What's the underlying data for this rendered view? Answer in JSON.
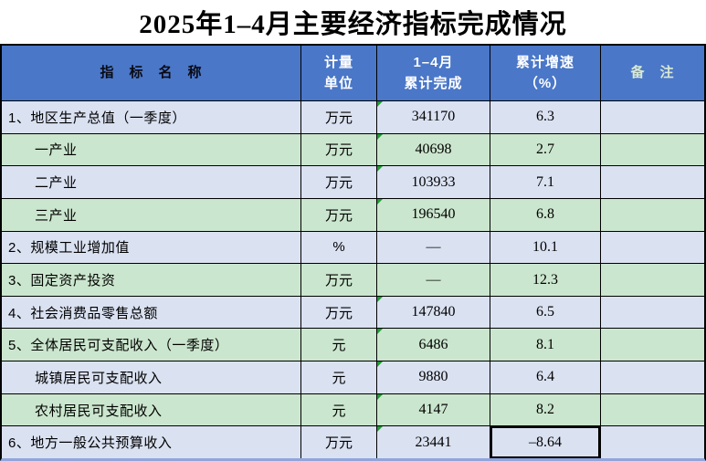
{
  "title": "2025年1–4月主要经济指标完成情况",
  "table": {
    "headers": [
      {
        "label": "指　标　名　称"
      },
      {
        "label": "计量\n单位"
      },
      {
        "label": "1–4月\n累计完成"
      },
      {
        "label": "累计增速\n（%）"
      },
      {
        "label": "备　注"
      }
    ],
    "rows": [
      {
        "name": "1、地区生产总值（一季度）",
        "unit": "万元",
        "value": "341170",
        "growth": "6.3",
        "remark": "",
        "indent": false,
        "flag": true,
        "growth_boxed": false
      },
      {
        "name": "一产业",
        "unit": "万元",
        "value": "40698",
        "growth": "2.7",
        "remark": "",
        "indent": true,
        "flag": true,
        "growth_boxed": false
      },
      {
        "name": "二产业",
        "unit": "万元",
        "value": "103933",
        "growth": "7.1",
        "remark": "",
        "indent": true,
        "flag": true,
        "growth_boxed": false
      },
      {
        "name": "三产业",
        "unit": "万元",
        "value": "196540",
        "growth": "6.8",
        "remark": "",
        "indent": true,
        "flag": true,
        "growth_boxed": false
      },
      {
        "name": "2、规模工业增加值",
        "unit": "%",
        "value": "—",
        "growth": "10.1",
        "remark": "",
        "indent": false,
        "flag": false,
        "growth_boxed": false
      },
      {
        "name": "3、固定资产投资",
        "unit": "万元",
        "value": "—",
        "growth": "12.3",
        "remark": "",
        "indent": false,
        "flag": false,
        "growth_boxed": false
      },
      {
        "name": "4、社会消费品零售总额",
        "unit": "万元",
        "value": "147840",
        "growth": "6.5",
        "remark": "",
        "indent": false,
        "flag": true,
        "growth_boxed": false
      },
      {
        "name": "5、全体居民可支配收入（一季度）",
        "unit": "元",
        "value": "6486",
        "growth": "8.1",
        "remark": "",
        "indent": false,
        "flag": true,
        "growth_boxed": false
      },
      {
        "name": "城镇居民可支配收入",
        "unit": "元",
        "value": "9880",
        "growth": "6.4",
        "remark": "",
        "indent": true,
        "flag": true,
        "growth_boxed": false
      },
      {
        "name": "农村居民可支配收入",
        "unit": "元",
        "value": "4147",
        "growth": "8.2",
        "remark": "",
        "indent": true,
        "flag": true,
        "growth_boxed": false
      },
      {
        "name": "6、地方一般公共预算收入",
        "unit": "万元",
        "value": "23441",
        "growth": "–8.64",
        "remark": "",
        "indent": false,
        "flag": true,
        "growth_boxed": true
      }
    ],
    "colors": {
      "header_bg": "#4A77C8",
      "header_text": "#FFFFFF",
      "header_name_text": "#0A0A14",
      "remark_header_text": "#D9E8D2",
      "row_blue": "#DAE1F1",
      "row_green": "#CBE6CE",
      "grid_line": "#000000",
      "flag_triangle": "#1E9E32",
      "bottom_edge": "#8FA5DC"
    }
  }
}
